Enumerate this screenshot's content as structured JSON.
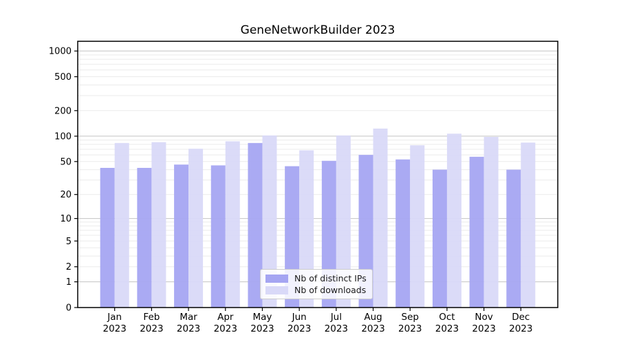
{
  "window": {
    "background": "#ffffff"
  },
  "chart_data": {
    "type": "bar",
    "title": "GeneNetworkBuilder 2023",
    "categories": [
      "Jan",
      "Feb",
      "Mar",
      "Apr",
      "May",
      "Jun",
      "Jul",
      "Aug",
      "Sep",
      "Oct",
      "Nov",
      "Dec"
    ],
    "category_year": "2023",
    "series": [
      {
        "name": "Nb of distinct IPs",
        "color": "#a5a5f2",
        "values": [
          42,
          42,
          46,
          45,
          83,
          44,
          51,
          60,
          53,
          40,
          57,
          40
        ]
      },
      {
        "name": "Nb of downloads",
        "color": "#d9d9f8",
        "values": [
          83,
          85,
          71,
          87,
          102,
          68,
          102,
          123,
          78,
          107,
          98,
          84
        ]
      }
    ],
    "yscale": "log1p",
    "yticks": [
      0,
      1,
      2,
      5,
      10,
      20,
      50,
      100,
      200,
      500,
      1000
    ],
    "ylim": [
      0,
      1300
    ],
    "xlabel": "",
    "ylabel": "",
    "grid": {
      "major": true,
      "minor": true
    },
    "legend_position": "lower center"
  },
  "style": {
    "spine_color": "#000000",
    "tick_color": "#000000",
    "tick_label_color": "#000000",
    "grid_major_color": "#c2c2c2",
    "grid_minor_color": "#ebebeb",
    "legend_border_color": "#cccccc"
  }
}
